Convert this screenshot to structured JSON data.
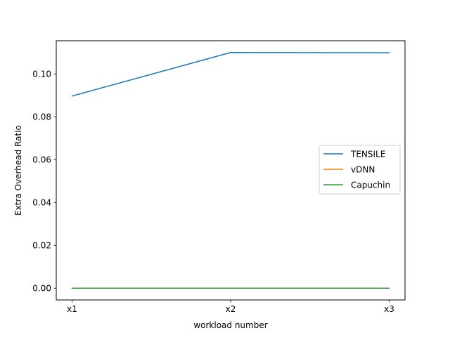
{
  "chart_data": {
    "type": "line",
    "title": "",
    "xlabel": "workload number",
    "ylabel": "Extra Overhead Ratio",
    "categories": [
      "x1",
      "x2",
      "x3"
    ],
    "ylim": [
      -0.0055,
      0.1155
    ],
    "yticks": [
      0.0,
      0.02,
      0.04,
      0.06,
      0.08,
      0.1
    ],
    "ytick_labels": [
      "0.00",
      "0.02",
      "0.04",
      "0.06",
      "0.08",
      "0.10"
    ],
    "grid": false,
    "legend_position": "center-right",
    "series": [
      {
        "name": "TENSILE",
        "color": "#1f77b4",
        "values": [
          0.0897,
          0.11,
          0.1099
        ]
      },
      {
        "name": "vDNN",
        "color": "#ff7f0e",
        "values": [
          0.0,
          0.0,
          0.0
        ]
      },
      {
        "name": "Capuchin",
        "color": "#2ca02c",
        "values": [
          0.0,
          0.0,
          0.0
        ]
      }
    ]
  }
}
